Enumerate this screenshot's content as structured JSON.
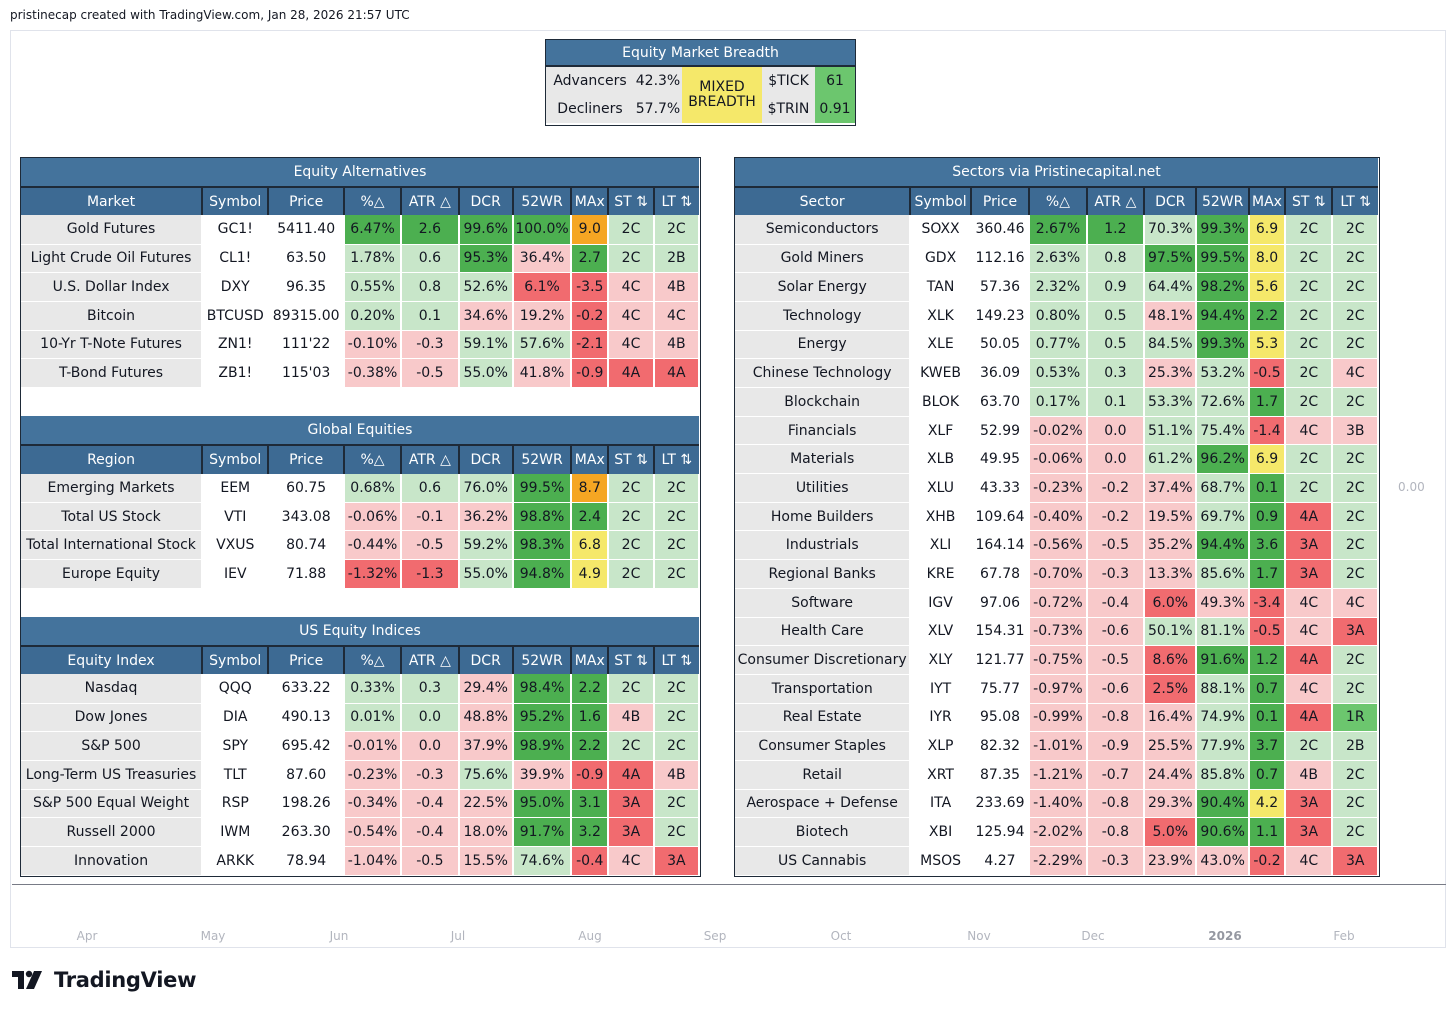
{
  "header": "pristinecap created with TradingView.com, Jan 28, 2026 21:57 UTC",
  "brand": "TradingView",
  "axis_right_value": "0.00",
  "x_axis_ticks": [
    "Apr",
    "May",
    "Jun",
    "Jul",
    "Aug",
    "Sep",
    "Oct",
    "Nov",
    "Dec",
    "2026",
    "Feb"
  ],
  "colors": {
    "dark_green": "#4caf50",
    "mid_green": "#6cc66e",
    "light_green": "#c8e6c9",
    "dark_red": "#f16b6f",
    "light_red": "#f8c9ca",
    "yellow": "#f5e86a",
    "orange": "#f5a623",
    "header_blue": "#3d6a93",
    "label_gray": "#e8e8e8"
  },
  "chart_data": {
    "type": "table",
    "breadth": {
      "title": "Equity Market Breadth",
      "advancers_label": "Advancers",
      "advancers": "42.3%",
      "decliners_label": "Decliners",
      "decliners": "57.7%",
      "status": "MIXED BREADTH",
      "tick_label": "$TICK",
      "tick": "61",
      "trin_label": "$TRIN",
      "trin": "0.91"
    },
    "columns": [
      "Symbol",
      "Price",
      "%△",
      "ATR △",
      "DCR",
      "52WR",
      "MAx",
      "ST ⇅",
      "LT ⇅"
    ],
    "left_tables": [
      {
        "title": "Equity Alternatives",
        "first_col": "Market",
        "rows": [
          [
            "Gold Futures",
            "GC1!",
            "5411.40",
            "6.47%",
            "2.6",
            "99.6%",
            "100.0%",
            "9.0",
            "2C",
            "2C"
          ],
          [
            "Light Crude Oil Futures",
            "CL1!",
            "63.50",
            "1.78%",
            "0.6",
            "95.3%",
            "36.4%",
            "2.7",
            "2C",
            "2B"
          ],
          [
            "U.S. Dollar Index",
            "DXY",
            "96.35",
            "0.55%",
            "0.8",
            "52.6%",
            "6.1%",
            "-3.5",
            "4C",
            "4B"
          ],
          [
            "Bitcoin",
            "BTCUSD",
            "89315.00",
            "0.20%",
            "0.1",
            "34.6%",
            "19.2%",
            "-0.2",
            "4C",
            "4C"
          ],
          [
            "10-Yr T-Note Futures",
            "ZN1!",
            "111'22",
            "-0.10%",
            "-0.3",
            "59.1%",
            "57.6%",
            "-2.1",
            "4C",
            "4B"
          ],
          [
            "T-Bond Futures",
            "ZB1!",
            "115'03",
            "-0.38%",
            "-0.5",
            "55.0%",
            "41.8%",
            "-0.9",
            "4A",
            "4A"
          ]
        ],
        "colors": [
          [
            "lbl",
            "wh",
            "wh",
            "dg",
            "dg",
            "dg",
            "dg",
            "or",
            "lg",
            "lg"
          ],
          [
            "lbl",
            "wh",
            "wh",
            "lg",
            "lg",
            "dg",
            "lr",
            "dg",
            "lg",
            "lg"
          ],
          [
            "lbl",
            "wh",
            "wh",
            "lg",
            "lg",
            "lg",
            "dr",
            "dr",
            "lr",
            "lr"
          ],
          [
            "lbl",
            "wh",
            "wh",
            "lg",
            "lg",
            "lr",
            "lr",
            "dr",
            "lr",
            "lr"
          ],
          [
            "lbl",
            "wh",
            "wh",
            "lr",
            "lr",
            "lg",
            "lg",
            "dr",
            "lr",
            "lr"
          ],
          [
            "lbl",
            "wh",
            "wh",
            "lr",
            "lr",
            "lg",
            "lr",
            "dr",
            "dr",
            "dr"
          ]
        ]
      },
      {
        "title": "Global Equities",
        "first_col": "Region",
        "rows": [
          [
            "Emerging Markets",
            "EEM",
            "60.75",
            "0.68%",
            "0.6",
            "76.0%",
            "99.5%",
            "8.7",
            "2C",
            "2C"
          ],
          [
            "Total US Stock",
            "VTI",
            "343.08",
            "-0.06%",
            "-0.1",
            "36.2%",
            "98.8%",
            "2.4",
            "2C",
            "2C"
          ],
          [
            "Total International Stock",
            "VXUS",
            "80.74",
            "-0.44%",
            "-0.5",
            "59.2%",
            "98.3%",
            "6.8",
            "2C",
            "2C"
          ],
          [
            "Europe Equity",
            "IEV",
            "71.88",
            "-1.32%",
            "-1.3",
            "55.0%",
            "94.8%",
            "4.9",
            "2C",
            "2C"
          ]
        ],
        "colors": [
          [
            "lbl",
            "wh",
            "wh",
            "lg",
            "lg",
            "lg",
            "dg",
            "or",
            "lg",
            "lg"
          ],
          [
            "lbl",
            "wh",
            "wh",
            "lr",
            "lr",
            "lr",
            "dg",
            "dg",
            "lg",
            "lg"
          ],
          [
            "lbl",
            "wh",
            "wh",
            "lr",
            "lr",
            "lg",
            "dg",
            "yl",
            "lg",
            "lg"
          ],
          [
            "lbl",
            "wh",
            "wh",
            "dr",
            "dr",
            "lg",
            "dg",
            "yl",
            "lg",
            "lg"
          ]
        ]
      },
      {
        "title": "US Equity Indices",
        "first_col": "Equity Index",
        "rows": [
          [
            "Nasdaq",
            "QQQ",
            "633.22",
            "0.33%",
            "0.3",
            "29.4%",
            "98.4%",
            "2.2",
            "2C",
            "2C"
          ],
          [
            "Dow Jones",
            "DIA",
            "490.13",
            "0.01%",
            "0.0",
            "48.8%",
            "95.2%",
            "1.6",
            "4B",
            "2C"
          ],
          [
            "S&P 500",
            "SPY",
            "695.42",
            "-0.01%",
            "0.0",
            "37.9%",
            "98.9%",
            "2.2",
            "2C",
            "2C"
          ],
          [
            "Long-Term US Treasuries",
            "TLT",
            "87.60",
            "-0.23%",
            "-0.3",
            "75.6%",
            "39.9%",
            "-0.9",
            "4A",
            "4B"
          ],
          [
            "S&P 500 Equal Weight",
            "RSP",
            "198.26",
            "-0.34%",
            "-0.4",
            "22.5%",
            "95.0%",
            "3.1",
            "3A",
            "2C"
          ],
          [
            "Russell 2000",
            "IWM",
            "263.30",
            "-0.54%",
            "-0.4",
            "18.0%",
            "91.7%",
            "3.2",
            "3A",
            "2C"
          ],
          [
            "Innovation",
            "ARKK",
            "78.94",
            "-1.04%",
            "-0.5",
            "15.5%",
            "74.6%",
            "-0.4",
            "4C",
            "3A"
          ]
        ],
        "colors": [
          [
            "lbl",
            "wh",
            "wh",
            "lg",
            "lg",
            "lr",
            "dg",
            "dg",
            "lg",
            "lg"
          ],
          [
            "lbl",
            "wh",
            "wh",
            "lg",
            "lg",
            "lr",
            "dg",
            "dg",
            "lr",
            "lg"
          ],
          [
            "lbl",
            "wh",
            "wh",
            "lr",
            "lr",
            "lr",
            "dg",
            "dg",
            "lg",
            "lg"
          ],
          [
            "lbl",
            "wh",
            "wh",
            "lr",
            "lr",
            "lg",
            "lr",
            "dr",
            "dr",
            "lr"
          ],
          [
            "lbl",
            "wh",
            "wh",
            "lr",
            "lr",
            "lr",
            "dg",
            "dg",
            "dr",
            "lg"
          ],
          [
            "lbl",
            "wh",
            "wh",
            "lr",
            "lr",
            "lr",
            "dg",
            "dg",
            "dr",
            "lg"
          ],
          [
            "lbl",
            "wh",
            "wh",
            "lr",
            "lr",
            "lr",
            "lg",
            "dr",
            "lr",
            "dr"
          ]
        ]
      }
    ],
    "right_table": {
      "title": "Sectors via Pristinecapital.net",
      "first_col": "Sector",
      "rows": [
        [
          "Semiconductors",
          "SOXX",
          "360.46",
          "2.67%",
          "1.2",
          "70.3%",
          "99.3%",
          "6.9",
          "2C",
          "2C"
        ],
        [
          "Gold Miners",
          "GDX",
          "112.16",
          "2.63%",
          "0.8",
          "97.5%",
          "99.5%",
          "8.0",
          "2C",
          "2C"
        ],
        [
          "Solar Energy",
          "TAN",
          "57.36",
          "2.32%",
          "0.9",
          "64.4%",
          "98.2%",
          "5.6",
          "2C",
          "2C"
        ],
        [
          "Technology",
          "XLK",
          "149.23",
          "0.80%",
          "0.5",
          "48.1%",
          "94.4%",
          "2.2",
          "2C",
          "2C"
        ],
        [
          "Energy",
          "XLE",
          "50.05",
          "0.77%",
          "0.5",
          "84.5%",
          "99.3%",
          "5.3",
          "2C",
          "2C"
        ],
        [
          "Chinese Technology",
          "KWEB",
          "36.09",
          "0.53%",
          "0.3",
          "25.3%",
          "53.2%",
          "-0.5",
          "2C",
          "4C"
        ],
        [
          "Blockchain",
          "BLOK",
          "63.70",
          "0.17%",
          "0.1",
          "53.3%",
          "72.6%",
          "1.7",
          "2C",
          "2C"
        ],
        [
          "Financials",
          "XLF",
          "52.99",
          "-0.02%",
          "0.0",
          "51.1%",
          "75.4%",
          "-1.4",
          "4C",
          "3B"
        ],
        [
          "Materials",
          "XLB",
          "49.95",
          "-0.06%",
          "0.0",
          "61.2%",
          "96.2%",
          "6.9",
          "2C",
          "2C"
        ],
        [
          "Utilities",
          "XLU",
          "43.33",
          "-0.23%",
          "-0.2",
          "37.4%",
          "68.7%",
          "0.1",
          "2C",
          "2C"
        ],
        [
          "Home Builders",
          "XHB",
          "109.64",
          "-0.40%",
          "-0.2",
          "19.5%",
          "69.7%",
          "0.9",
          "4A",
          "2C"
        ],
        [
          "Industrials",
          "XLI",
          "164.14",
          "-0.56%",
          "-0.5",
          "35.2%",
          "94.4%",
          "3.6",
          "3A",
          "2C"
        ],
        [
          "Regional Banks",
          "KRE",
          "67.78",
          "-0.70%",
          "-0.3",
          "13.3%",
          "85.6%",
          "1.7",
          "3A",
          "2C"
        ],
        [
          "Software",
          "IGV",
          "97.06",
          "-0.72%",
          "-0.4",
          "6.0%",
          "49.3%",
          "-3.4",
          "4C",
          "4C"
        ],
        [
          "Health Care",
          "XLV",
          "154.31",
          "-0.73%",
          "-0.6",
          "50.1%",
          "81.1%",
          "-0.5",
          "4C",
          "3A"
        ],
        [
          "Consumer Discretionary",
          "XLY",
          "121.77",
          "-0.75%",
          "-0.5",
          "8.6%",
          "91.6%",
          "1.2",
          "4A",
          "2C"
        ],
        [
          "Transportation",
          "IYT",
          "75.77",
          "-0.97%",
          "-0.6",
          "2.5%",
          "88.1%",
          "0.7",
          "4C",
          "2C"
        ],
        [
          "Real Estate",
          "IYR",
          "95.08",
          "-0.99%",
          "-0.8",
          "16.4%",
          "74.9%",
          "0.1",
          "4A",
          "1R"
        ],
        [
          "Consumer Staples",
          "XLP",
          "82.32",
          "-1.01%",
          "-0.9",
          "25.5%",
          "77.9%",
          "3.7",
          "2C",
          "2B"
        ],
        [
          "Retail",
          "XRT",
          "87.35",
          "-1.21%",
          "-0.7",
          "24.4%",
          "85.8%",
          "0.7",
          "4B",
          "2C"
        ],
        [
          "Aerospace + Defense",
          "ITA",
          "233.69",
          "-1.40%",
          "-0.8",
          "29.3%",
          "90.4%",
          "4.2",
          "3A",
          "2C"
        ],
        [
          "Biotech",
          "XBI",
          "125.94",
          "-2.02%",
          "-0.8",
          "5.0%",
          "90.6%",
          "1.1",
          "3A",
          "2C"
        ],
        [
          "US Cannabis",
          "MSOS",
          "4.27",
          "-2.29%",
          "-0.3",
          "23.9%",
          "43.0%",
          "-0.2",
          "4C",
          "3A"
        ]
      ],
      "colors": [
        [
          "lbl",
          "wh",
          "wh",
          "dg",
          "dg",
          "lg",
          "dg",
          "yl",
          "lg",
          "lg"
        ],
        [
          "lbl",
          "wh",
          "wh",
          "lg",
          "lg",
          "dg",
          "dg",
          "yl",
          "lg",
          "lg"
        ],
        [
          "lbl",
          "wh",
          "wh",
          "lg",
          "lg",
          "lg",
          "dg",
          "yl",
          "lg",
          "lg"
        ],
        [
          "lbl",
          "wh",
          "wh",
          "lg",
          "lg",
          "lr",
          "dg",
          "dg",
          "lg",
          "lg"
        ],
        [
          "lbl",
          "wh",
          "wh",
          "lg",
          "lg",
          "lg",
          "dg",
          "yl",
          "lg",
          "lg"
        ],
        [
          "lbl",
          "wh",
          "wh",
          "lg",
          "lg",
          "lr",
          "lg",
          "dr",
          "lg",
          "lr"
        ],
        [
          "lbl",
          "wh",
          "wh",
          "lg",
          "lg",
          "lg",
          "lg",
          "dg",
          "lg",
          "lg"
        ],
        [
          "lbl",
          "wh",
          "wh",
          "lr",
          "lr",
          "lg",
          "lg",
          "dr",
          "lr",
          "lr"
        ],
        [
          "lbl",
          "wh",
          "wh",
          "lr",
          "lr",
          "lg",
          "dg",
          "yl",
          "lg",
          "lg"
        ],
        [
          "lbl",
          "wh",
          "wh",
          "lr",
          "lr",
          "lr",
          "lg",
          "dg",
          "lg",
          "lg"
        ],
        [
          "lbl",
          "wh",
          "wh",
          "lr",
          "lr",
          "lr",
          "lg",
          "dg",
          "dr",
          "lg"
        ],
        [
          "lbl",
          "wh",
          "wh",
          "lr",
          "lr",
          "lr",
          "dg",
          "dg",
          "dr",
          "lg"
        ],
        [
          "lbl",
          "wh",
          "wh",
          "lr",
          "lr",
          "lr",
          "lg",
          "dg",
          "dr",
          "lg"
        ],
        [
          "lbl",
          "wh",
          "wh",
          "lr",
          "lr",
          "dr",
          "lr",
          "dr",
          "lr",
          "lr"
        ],
        [
          "lbl",
          "wh",
          "wh",
          "lr",
          "lr",
          "lg",
          "lg",
          "dr",
          "lr",
          "dr"
        ],
        [
          "lbl",
          "wh",
          "wh",
          "lr",
          "lr",
          "dr",
          "dg",
          "dg",
          "dr",
          "lg"
        ],
        [
          "lbl",
          "wh",
          "wh",
          "lr",
          "lr",
          "dr",
          "lg",
          "dg",
          "lr",
          "lg"
        ],
        [
          "lbl",
          "wh",
          "wh",
          "lr",
          "lr",
          "lr",
          "lg",
          "dg",
          "dr",
          "mg"
        ],
        [
          "lbl",
          "wh",
          "wh",
          "lr",
          "lr",
          "lr",
          "lg",
          "dg",
          "lg",
          "lg"
        ],
        [
          "lbl",
          "wh",
          "wh",
          "lr",
          "lr",
          "lr",
          "lg",
          "dg",
          "lr",
          "lg"
        ],
        [
          "lbl",
          "wh",
          "wh",
          "lr",
          "lr",
          "lr",
          "dg",
          "yl",
          "dr",
          "lg"
        ],
        [
          "lbl",
          "wh",
          "wh",
          "lr",
          "lr",
          "dr",
          "dg",
          "dg",
          "dr",
          "lg"
        ],
        [
          "lbl",
          "wh",
          "wh",
          "lr",
          "lr",
          "lr",
          "lr",
          "dr",
          "lr",
          "dr"
        ]
      ]
    }
  }
}
